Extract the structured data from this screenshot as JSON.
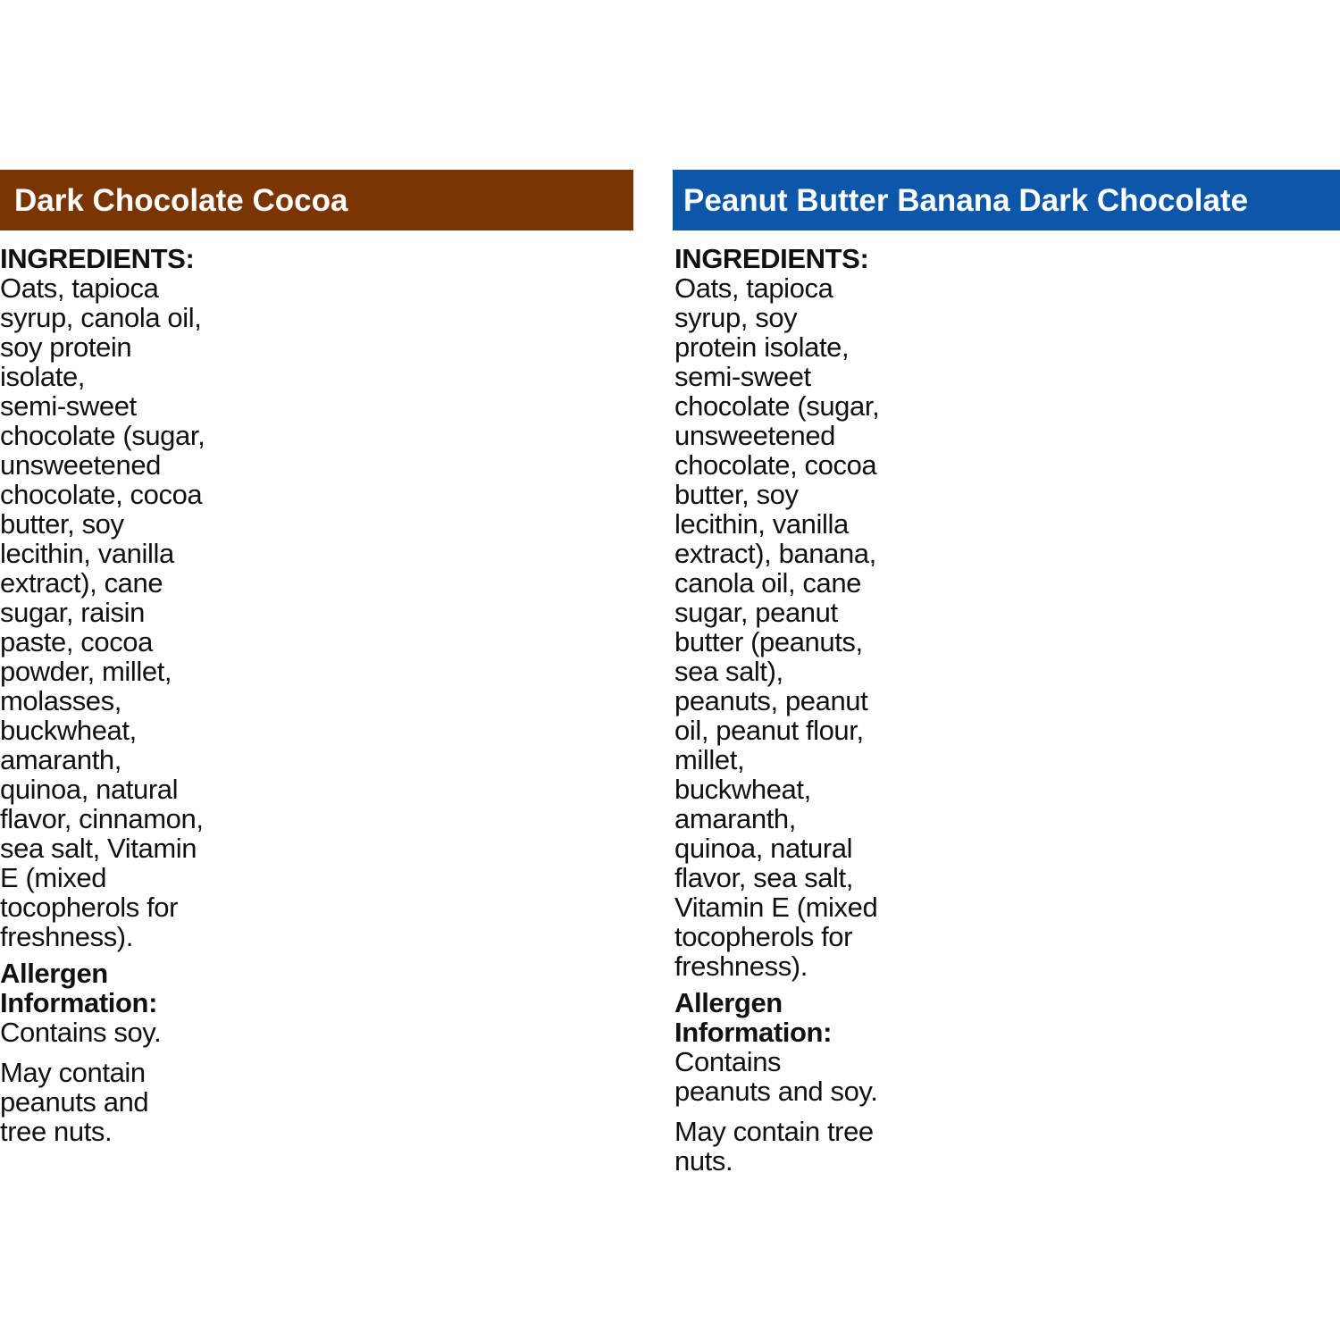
{
  "columns": [
    {
      "title": "Dark Chocolate Cocoa",
      "ingredients_label": "INGREDIENTS:",
      "ingredients": [
        "Oats, tapioca",
        "syrup, canola oil,",
        "soy protein",
        "isolate,",
        "semi-sweet",
        "chocolate (sugar,",
        "unsweetened",
        "chocolate, cocoa",
        "butter, soy",
        "lecithin, vanilla",
        "extract), cane",
        "sugar, raisin",
        "paste, cocoa",
        "powder, millet,",
        "molasses,",
        "buckwheat,",
        "amaranth,",
        "quinoa, natural",
        "flavor, cinnamon,",
        "sea salt, Vitamin",
        "E (mixed",
        "tocopherols for",
        "freshness)."
      ],
      "allergen_label": [
        "Allergen",
        "Information:"
      ],
      "contains": [
        "Contains soy."
      ],
      "may_contain": [
        "May contain",
        "peanuts and",
        "tree nuts."
      ]
    },
    {
      "title": "Peanut Butter Banana Dark Chocolate",
      "ingredients_label": "INGREDIENTS:",
      "ingredients": [
        "Oats, tapioca",
        "syrup, soy",
        "protein isolate,",
        "semi-sweet",
        "chocolate (sugar,",
        "unsweetened",
        "chocolate, cocoa",
        "butter, soy",
        "lecithin, vanilla",
        "extract), banana,",
        "canola oil, cane",
        "sugar, peanut",
        "butter (peanuts,",
        "sea salt),",
        "peanuts, peanut",
        "oil, peanut flour,",
        "millet,",
        "buckwheat,",
        "amaranth,",
        "quinoa, natural",
        "flavor, sea salt,",
        "Vitamin E (mixed",
        "tocopherols for",
        "freshness)."
      ],
      "allergen_label": [
        "Allergen",
        "Information:"
      ],
      "contains": [
        "Contains",
        "peanuts and soy."
      ],
      "may_contain": [
        "May contain tree",
        "nuts."
      ]
    }
  ]
}
